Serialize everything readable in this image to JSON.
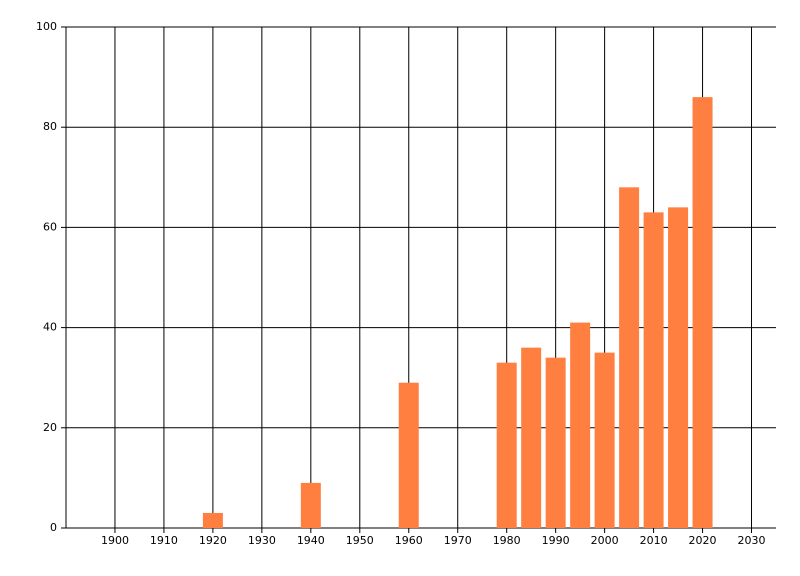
{
  "chart_data": {
    "type": "bar",
    "x": [
      1920,
      1940,
      1960,
      1980,
      1985,
      1990,
      1995,
      2000,
      2005,
      2010,
      2015,
      2020
    ],
    "values": [
      3,
      9,
      29,
      33,
      36,
      34,
      41,
      35,
      68,
      63,
      64,
      86
    ],
    "color": "#ff7f40",
    "xlim": [
      1890,
      2035
    ],
    "xticks": [
      1900,
      1910,
      1920,
      1930,
      1940,
      1950,
      1960,
      1970,
      1980,
      1990,
      2000,
      2010,
      2020,
      2030
    ],
    "ylim": [
      0,
      100
    ],
    "yticks": [
      0,
      20,
      40,
      60,
      80,
      100
    ],
    "grid": true
  }
}
